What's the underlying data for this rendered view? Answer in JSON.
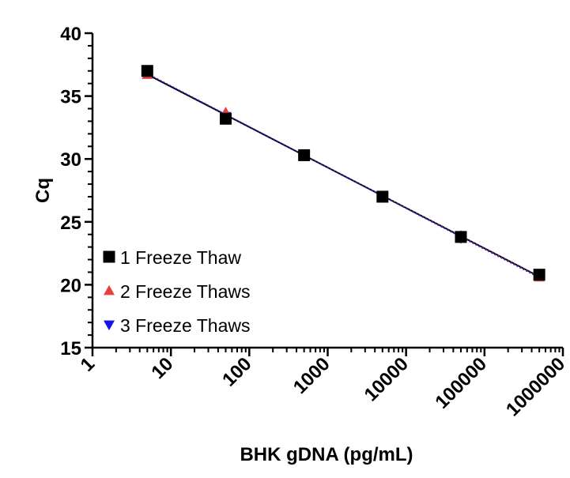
{
  "chart_data": {
    "type": "scatter",
    "xlabel": "BHK gDNA (pg/mL)",
    "ylabel": "Cq",
    "x_scale": "log",
    "xlim": [
      1,
      1000000
    ],
    "ylim": [
      15,
      40
    ],
    "x_ticks": [
      "1",
      "10",
      "100",
      "1000",
      "10000",
      "100000",
      "1000000"
    ],
    "y_ticks": [
      "15",
      "20",
      "25",
      "30",
      "35",
      "40"
    ],
    "grid": false,
    "legend_position": "bottom-left",
    "series": [
      {
        "name": "1 Freeze Thaw",
        "marker": "square",
        "color": "#000000",
        "line_style": "solid",
        "x": [
          5,
          50,
          500,
          5000,
          50000,
          500000
        ],
        "y": [
          37.0,
          33.2,
          30.3,
          27.0,
          23.8,
          20.8
        ]
      },
      {
        "name": "2 Freeze Thaws",
        "marker": "triangle-up",
        "color": "#e8403c",
        "line_style": "dotted",
        "x": [
          5,
          50,
          500,
          5000,
          50000,
          500000
        ],
        "y": [
          36.7,
          33.7,
          30.3,
          27.0,
          23.9,
          20.6
        ]
      },
      {
        "name": "3 Freeze Thaws",
        "marker": "triangle-down",
        "color": "#1414e6",
        "line_style": "dotted",
        "x": [
          5,
          50,
          500,
          5000,
          50000,
          500000
        ],
        "y": [
          36.9,
          33.4,
          30.3,
          27.0,
          23.7,
          20.7
        ]
      }
    ]
  }
}
